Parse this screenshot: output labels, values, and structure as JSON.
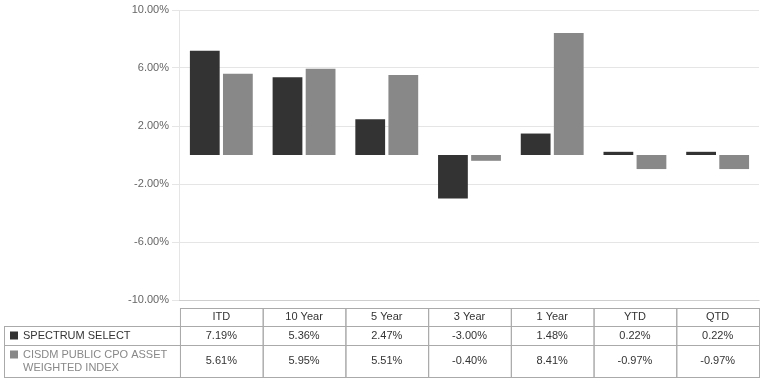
{
  "chart_data": {
    "type": "bar",
    "categories": [
      "ITD",
      "10 Year",
      "5 Year",
      "3 Year",
      "1 Year",
      "YTD",
      "QTD"
    ],
    "series": [
      {
        "name": "SPECTRUM SELECT",
        "color": "#333333",
        "values": [
          7.19,
          5.36,
          2.47,
          -3.0,
          1.48,
          0.22,
          0.22
        ],
        "value_labels": [
          "7.19%",
          "5.36%",
          "2.47%",
          "-3.00%",
          "1.48%",
          "0.22%",
          "0.22%"
        ]
      },
      {
        "name": "CISDM PUBLIC CPO ASSET\nWEIGHTED INDEX",
        "color": "#888888",
        "values": [
          5.61,
          5.95,
          5.51,
          -0.4,
          8.41,
          -0.97,
          -0.97
        ],
        "value_labels": [
          "5.61%",
          "5.95%",
          "5.51%",
          "-0.40%",
          "8.41%",
          "-0.97%",
          "-0.97%"
        ]
      }
    ],
    "ylim": [
      -10,
      10
    ],
    "yticks": [
      {
        "value": -10,
        "label": "-10.00%"
      },
      {
        "value": -6,
        "label": "-6.00%"
      },
      {
        "value": -2,
        "label": "-2.00%"
      },
      {
        "value": 2,
        "label": "2.00%"
      },
      {
        "value": 6,
        "label": "6.00%"
      },
      {
        "value": 10,
        "label": "10.00%"
      }
    ],
    "grid": true,
    "data_labels": true,
    "tick_labels": "y"
  }
}
